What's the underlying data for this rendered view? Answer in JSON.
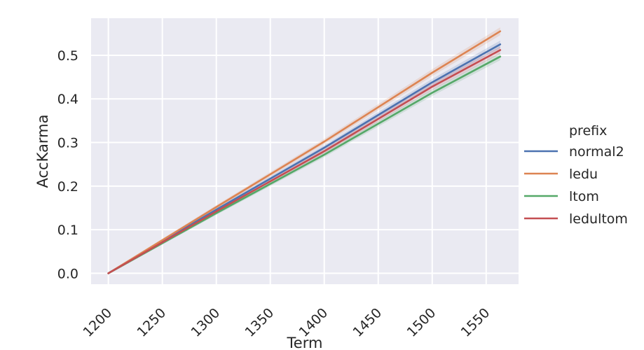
{
  "chart_data": {
    "type": "line",
    "xlabel": "Term",
    "ylabel": "AccKarma",
    "xlim": [
      1184,
      1580
    ],
    "ylim": [
      -0.025,
      0.585
    ],
    "xticks": [
      1200,
      1250,
      1300,
      1350,
      1400,
      1450,
      1500,
      1550
    ],
    "yticks": [
      0.0,
      0.1,
      0.2,
      0.3,
      0.4,
      0.5
    ],
    "ytick_labels": [
      "0.0",
      "0.1",
      "0.2",
      "0.3",
      "0.4",
      "0.5"
    ],
    "grid": true,
    "legend": {
      "title": "prefix",
      "placement": "right-outside"
    },
    "series": [
      {
        "name": "normal2",
        "color": "#4c72b0",
        "x": [
          1200,
          1300,
          1400,
          1500,
          1563
        ],
        "y": [
          0.0,
          0.146,
          0.288,
          0.438,
          0.525
        ]
      },
      {
        "name": "ledu",
        "color": "#dd8452",
        "x": [
          1200,
          1300,
          1400,
          1500,
          1563
        ],
        "y": [
          0.0,
          0.152,
          0.302,
          0.46,
          0.555
        ]
      },
      {
        "name": "ltom",
        "color": "#55a868",
        "x": [
          1200,
          1300,
          1400,
          1500,
          1563
        ],
        "y": [
          0.0,
          0.138,
          0.272,
          0.414,
          0.497
        ]
      },
      {
        "name": "ledultom",
        "color": "#c44e52",
        "x": [
          1200,
          1300,
          1400,
          1500,
          1563
        ],
        "y": [
          0.0,
          0.142,
          0.28,
          0.428,
          0.512
        ]
      }
    ]
  }
}
